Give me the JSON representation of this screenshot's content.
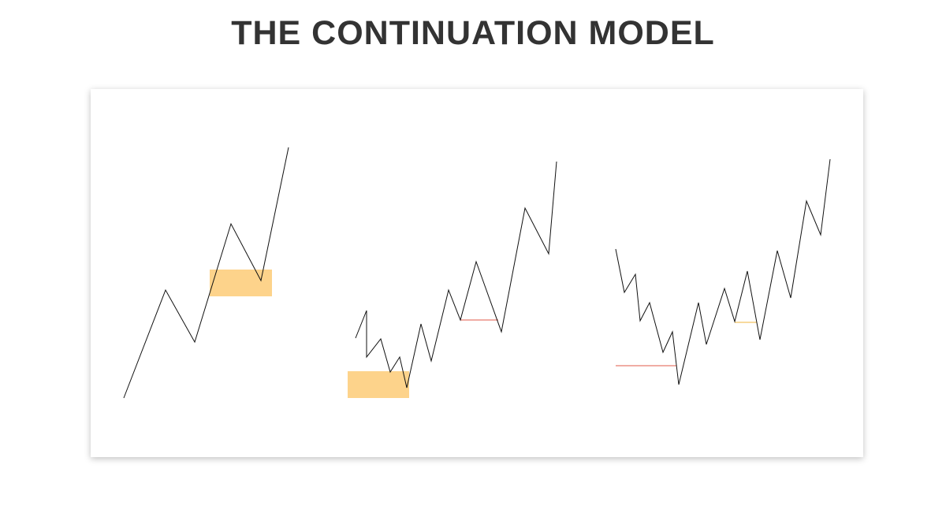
{
  "header": {
    "title": "THE CONTINUATION MODEL"
  }
}
